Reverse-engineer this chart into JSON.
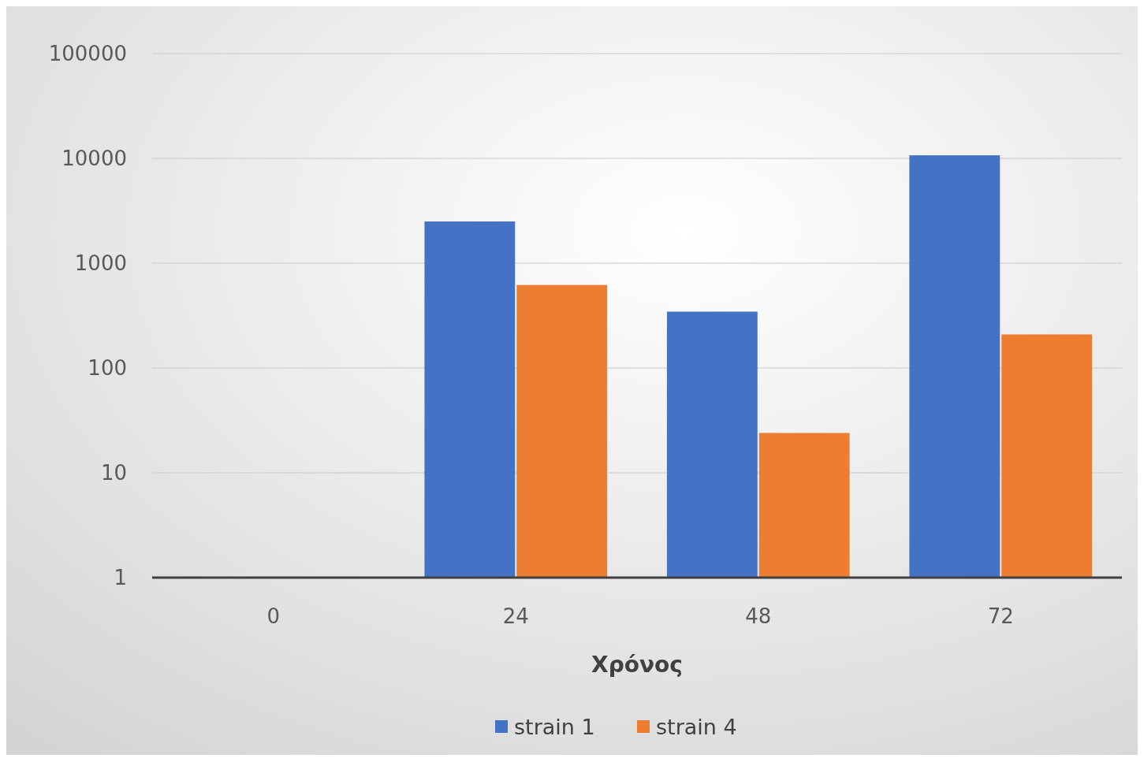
{
  "chart_data": {
    "type": "bar",
    "xlabel": "Χρόνος",
    "categories": [
      "0",
      "24",
      "48",
      "72"
    ],
    "series": [
      {
        "name": "strain 1",
        "color": "#4472c4",
        "values": [
          null,
          2500,
          345,
          10700
        ]
      },
      {
        "name": "strain 4",
        "color": "#ed7d31",
        "values": [
          null,
          620,
          24,
          209
        ]
      }
    ],
    "log": true,
    "ylim": [
      1,
      100000
    ],
    "yticks": [
      1,
      10,
      100,
      1000,
      10000,
      100000
    ],
    "grid": "y",
    "legend": "bottom"
  }
}
